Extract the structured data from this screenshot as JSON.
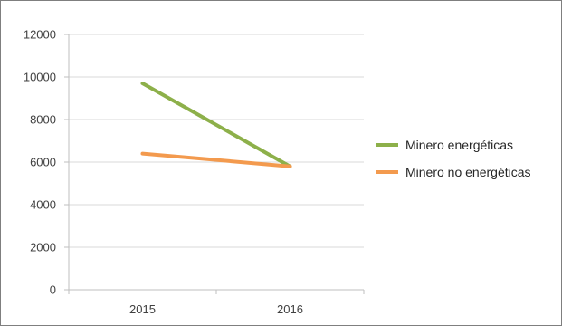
{
  "chart_data": {
    "type": "line",
    "title": "",
    "xlabel": "",
    "ylabel": "",
    "categories": [
      "2015",
      "2016"
    ],
    "ylim": [
      0,
      12000
    ],
    "yticks": [
      0,
      2000,
      4000,
      6000,
      8000,
      10000,
      12000
    ],
    "grid": true,
    "legend": "right",
    "series": [
      {
        "name": "Minero energéticas",
        "values": [
          9700,
          5800
        ],
        "color": "#8db04a"
      },
      {
        "name": "Minero no energéticas",
        "values": [
          6400,
          5800
        ],
        "color": "#f39a4e"
      }
    ]
  }
}
